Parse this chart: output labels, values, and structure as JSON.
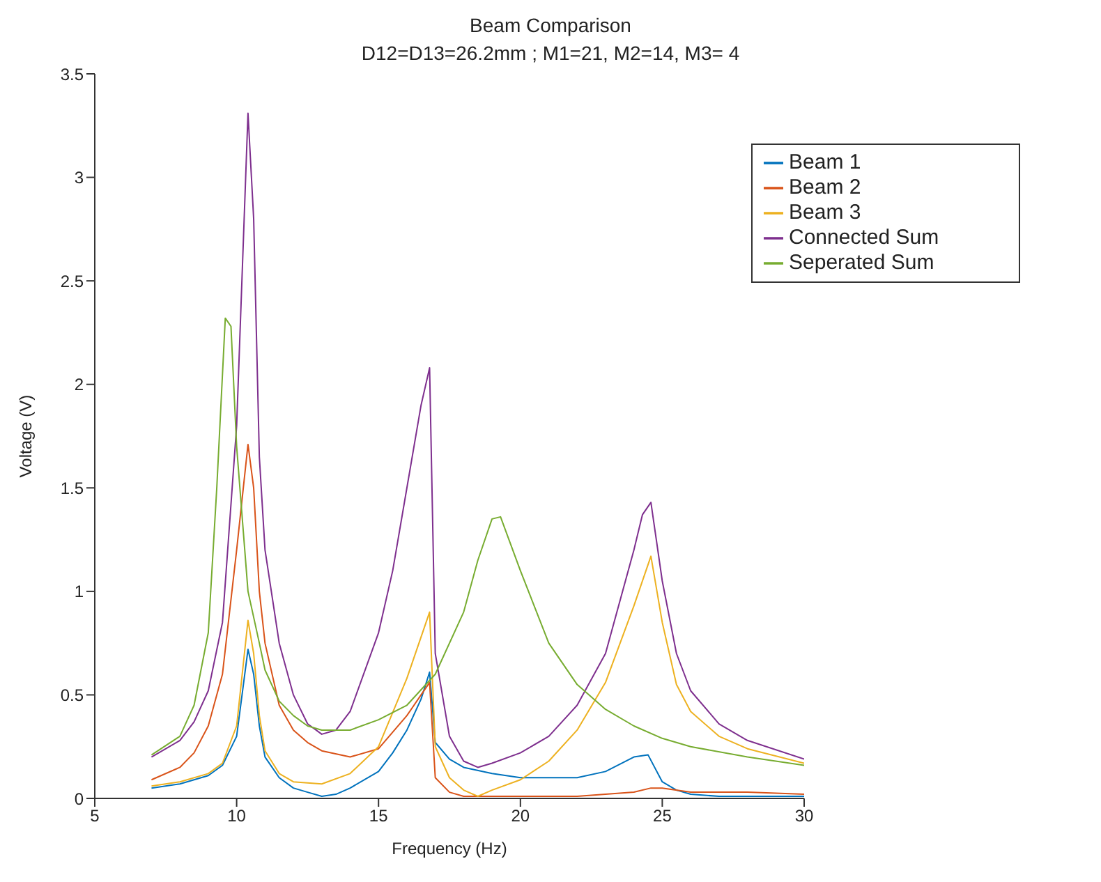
{
  "chart_data": {
    "type": "line",
    "title": "Beam Comparison",
    "subtitle": "D12=D13=26.2mm ; M1=21, M2=14, M3= 4",
    "xlabel": "Frequency (Hz)",
    "ylabel": "Voltage (V)",
    "xlim": [
      5,
      30
    ],
    "xticks": [
      5,
      10,
      15,
      20,
      25,
      30
    ],
    "ylim": [
      0,
      3.5
    ],
    "yticks": [
      0,
      0.5,
      1,
      1.5,
      2,
      2.5,
      3,
      3.5
    ],
    "grid": false,
    "legend": "top right",
    "marker": "none",
    "line_style": "solid",
    "series": [
      {
        "name": "Beam 1",
        "color": "#0072bd",
        "x": [
          7,
          8,
          9,
          9.5,
          10,
          10.4,
          10.6,
          10.8,
          11,
          11.5,
          12,
          12.5,
          13,
          13.5,
          14,
          15,
          15.5,
          16,
          16.5,
          16.8,
          17,
          17.5,
          18,
          19,
          20,
          21,
          22,
          23,
          24,
          24.5,
          25,
          25.5,
          26,
          27,
          28,
          30
        ],
        "values": [
          0.05,
          0.07,
          0.11,
          0.16,
          0.3,
          0.72,
          0.6,
          0.35,
          0.2,
          0.1,
          0.05,
          0.03,
          0.01,
          0.02,
          0.05,
          0.13,
          0.22,
          0.33,
          0.48,
          0.61,
          0.27,
          0.19,
          0.15,
          0.12,
          0.1,
          0.1,
          0.1,
          0.13,
          0.2,
          0.21,
          0.08,
          0.04,
          0.02,
          0.01,
          0.01,
          0.01
        ]
      },
      {
        "name": "Beam 2",
        "color": "#d95319",
        "x": [
          7,
          8,
          8.5,
          9,
          9.5,
          10,
          10.4,
          10.6,
          10.8,
          11,
          11.5,
          12,
          12.5,
          13,
          14,
          15,
          16,
          16.5,
          16.8,
          17,
          17.5,
          18,
          20,
          22,
          23,
          24,
          24.6,
          25,
          26,
          28,
          30
        ],
        "values": [
          0.09,
          0.15,
          0.22,
          0.35,
          0.6,
          1.2,
          1.71,
          1.5,
          1.0,
          0.75,
          0.45,
          0.33,
          0.27,
          0.23,
          0.2,
          0.24,
          0.4,
          0.5,
          0.56,
          0.1,
          0.03,
          0.01,
          0.01,
          0.01,
          0.02,
          0.03,
          0.05,
          0.05,
          0.03,
          0.03,
          0.02
        ]
      },
      {
        "name": "Beam 3",
        "color": "#edb120",
        "x": [
          7,
          8,
          9,
          9.5,
          10,
          10.4,
          10.6,
          10.8,
          11,
          11.5,
          12,
          13,
          14,
          15,
          16,
          16.8,
          17,
          17.5,
          18,
          18.5,
          19,
          20,
          21,
          22,
          23,
          24,
          24.6,
          25,
          25.5,
          26,
          27,
          28,
          30
        ],
        "values": [
          0.06,
          0.08,
          0.12,
          0.17,
          0.35,
          0.86,
          0.7,
          0.4,
          0.23,
          0.12,
          0.08,
          0.07,
          0.12,
          0.25,
          0.58,
          0.9,
          0.25,
          0.1,
          0.04,
          0.01,
          0.04,
          0.09,
          0.18,
          0.33,
          0.56,
          0.93,
          1.17,
          0.85,
          0.55,
          0.42,
          0.3,
          0.24,
          0.17
        ]
      },
      {
        "name": "Connected Sum",
        "color": "#7e2f8e",
        "x": [
          7,
          8,
          8.5,
          9,
          9.5,
          10,
          10.4,
          10.6,
          10.8,
          11,
          11.5,
          12,
          12.5,
          13,
          13.5,
          14,
          15,
          15.5,
          16,
          16.5,
          16.8,
          17,
          17.5,
          18,
          18.5,
          19,
          20,
          21,
          22,
          23,
          24,
          24.3,
          24.6,
          25,
          25.5,
          26,
          27,
          28,
          30
        ],
        "values": [
          0.2,
          0.28,
          0.37,
          0.52,
          0.85,
          1.8,
          3.31,
          2.8,
          1.65,
          1.2,
          0.75,
          0.5,
          0.36,
          0.31,
          0.33,
          0.42,
          0.8,
          1.1,
          1.5,
          1.9,
          2.08,
          0.7,
          0.3,
          0.18,
          0.15,
          0.17,
          0.22,
          0.3,
          0.45,
          0.7,
          1.2,
          1.37,
          1.43,
          1.05,
          0.7,
          0.52,
          0.36,
          0.28,
          0.19
        ]
      },
      {
        "name": "Seperated Sum",
        "color": "#77ac30",
        "x": [
          7,
          8,
          8.5,
          9,
          9.3,
          9.6,
          9.8,
          10,
          10.4,
          10.8,
          11,
          11.5,
          12,
          12.5,
          13,
          14,
          15,
          16,
          17,
          18,
          18.5,
          19,
          19.3,
          20,
          21,
          22,
          23,
          24,
          25,
          26,
          28,
          30
        ],
        "values": [
          0.21,
          0.3,
          0.45,
          0.8,
          1.5,
          2.32,
          2.28,
          1.7,
          1.0,
          0.75,
          0.62,
          0.47,
          0.4,
          0.35,
          0.33,
          0.33,
          0.38,
          0.45,
          0.6,
          0.9,
          1.15,
          1.35,
          1.36,
          1.1,
          0.75,
          0.55,
          0.43,
          0.35,
          0.29,
          0.25,
          0.2,
          0.16
        ]
      }
    ]
  }
}
